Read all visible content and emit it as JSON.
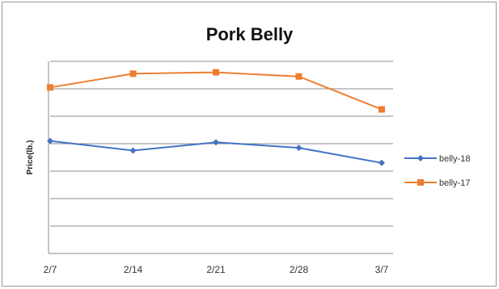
{
  "chart_data": {
    "type": "line",
    "title": "Pork Belly",
    "xlabel": "",
    "ylabel": "Price(lb.)",
    "categories": [
      "2/7",
      "2/14",
      "2/21",
      "2/28",
      "3/7"
    ],
    "ylim": [
      0,
      7
    ],
    "grid": true,
    "legend_position": "right",
    "series": [
      {
        "name": "belly-18",
        "color": "#4472C4",
        "marker": "diamond",
        "values": [
          4.1,
          3.75,
          4.05,
          3.85,
          3.3
        ]
      },
      {
        "name": "belly-17",
        "color": "#ED7D31",
        "marker": "square",
        "values": [
          6.05,
          6.55,
          6.6,
          6.45,
          5.25
        ]
      }
    ]
  }
}
